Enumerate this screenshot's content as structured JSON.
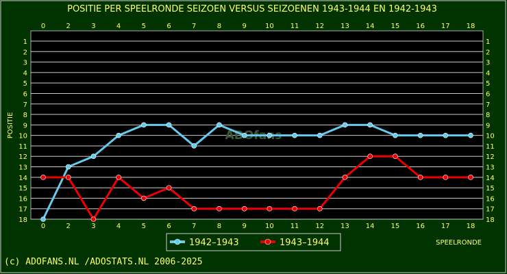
{
  "chart_data": {
    "type": "line",
    "title": "POSITIE PER SPEELRONDE SEIZOEN  VERSUS SEIZOENEN 1943-1944 EN 1942-1943",
    "xlabel": "SPEELRONDE",
    "ylabel": "POSITIE",
    "x_tick_labels": [
      "0",
      "2",
      "3",
      "4",
      "5",
      "6",
      "7",
      "8",
      "9",
      "10",
      "11",
      "12",
      "13",
      "14",
      "15",
      "16",
      "17",
      "18"
    ],
    "y_tick_labels": [
      "1",
      "2",
      "3",
      "4",
      "5",
      "6",
      "7",
      "8",
      "9",
      "10",
      "11",
      "12",
      "13",
      "14",
      "15",
      "16",
      "17",
      "18"
    ],
    "y_inverted": true,
    "ylim": [
      1,
      18
    ],
    "grid": true,
    "legend_position": "bottom-center",
    "series": [
      {
        "name": "1942–1943",
        "color": "#66ccee",
        "values": [
          18,
          13,
          12,
          10,
          9,
          9,
          11,
          9,
          10,
          10,
          10,
          10,
          9,
          9,
          10,
          10,
          10,
          10
        ]
      },
      {
        "name": "1943–1944",
        "color": "#ee0000",
        "values": [
          14,
          14,
          18,
          14,
          16,
          15,
          17,
          17,
          17,
          17,
          17,
          17,
          14,
          12,
          12,
          14,
          14,
          14
        ]
      }
    ]
  },
  "watermark": "ADOfans",
  "footer": "(c) ADOFANS.NL /ADOSTATS.NL 2006-2025",
  "colors": {
    "background": "#003300",
    "plot_background": "#000000",
    "text": "#ffff66",
    "grid": "#cccccc"
  }
}
